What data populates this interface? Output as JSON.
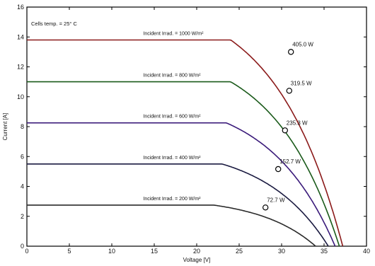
{
  "chart_data": {
    "type": "line",
    "title": "",
    "note": "Cells temp. = 25° C",
    "xlabel": "Voltage [V]",
    "ylabel": "Current [A]",
    "xlim": [
      0,
      40
    ],
    "ylim": [
      0,
      16
    ],
    "xticks": [
      "0",
      "5",
      "10",
      "15",
      "20",
      "25",
      "30",
      "35",
      "40"
    ],
    "yticks": [
      "0",
      "2",
      "4",
      "6",
      "8",
      "10",
      "12",
      "14",
      "16"
    ],
    "grid": false,
    "series": [
      {
        "name": "Incident Irrad. = 1000 W/m²",
        "color": "#8b1a1a",
        "isc": 13.8,
        "voc": 37.2,
        "vknee": 24.0,
        "a": 0.6,
        "mpp": {
          "v": 31.1,
          "i": 13.0,
          "label": "405.0 W"
        }
      },
      {
        "name": "Incident Irrad. = 800 W/m²",
        "color": "#1a5a1a",
        "isc": 11.0,
        "voc": 36.8,
        "vknee": 24.0,
        "a": 0.6,
        "mpp": {
          "v": 30.9,
          "i": 10.4,
          "label": "319.5 W"
        }
      },
      {
        "name": "Incident Irrad. = 600 W/m²",
        "color": "#3a1a7a",
        "isc": 8.25,
        "voc": 36.3,
        "vknee": 23.5,
        "a": 0.6,
        "mpp": {
          "v": 30.4,
          "i": 7.75,
          "label": "235.3 W"
        }
      },
      {
        "name": "Incident Irrad. = 400 W/m²",
        "color": "#1a1a40",
        "isc": 5.5,
        "voc": 35.5,
        "vknee": 23.0,
        "a": 0.6,
        "mpp": {
          "v": 29.6,
          "i": 5.16,
          "label": "152.7 W"
        }
      },
      {
        "name": "Incident Irrad. = 200 W/m²",
        "color": "#2a2a2a",
        "isc": 2.75,
        "voc": 34.0,
        "vknee": 22.0,
        "a": 0.55,
        "mpp": {
          "v": 28.1,
          "i": 2.59,
          "label": "72.7 W"
        }
      }
    ]
  }
}
